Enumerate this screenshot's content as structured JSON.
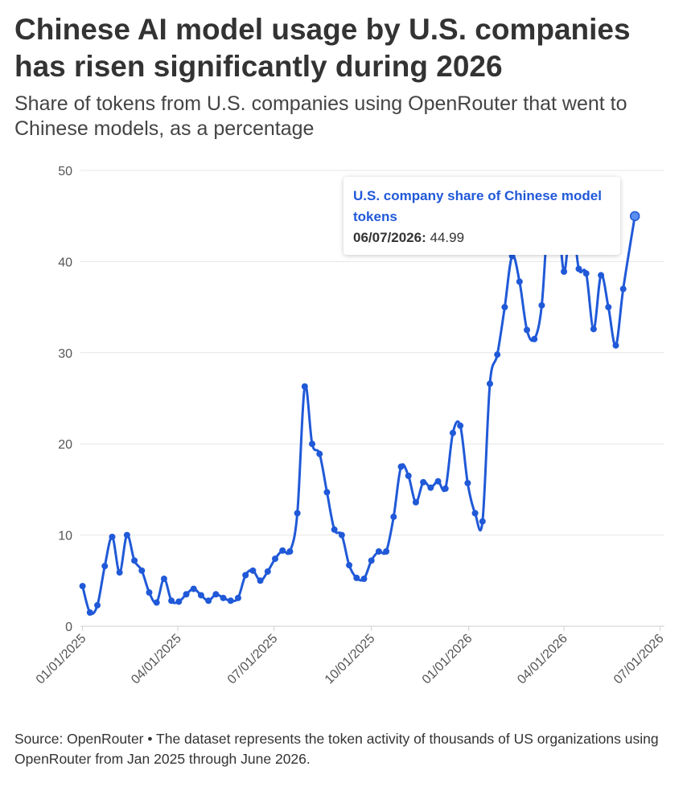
{
  "title": "Chinese AI model usage by U.S. companies has risen significantly during 2026",
  "subtitle": "Share of tokens from U.S. companies using OpenRouter that went to Chinese models, as a percentage",
  "source": "Source: OpenRouter • The dataset represents the token activity of thousands of US organizations using OpenRouter from Jan 2025 through June 2026.",
  "tooltip": {
    "series": "U.S. company share of Chinese model tokens",
    "date": "06/07/2026:",
    "value": "44.99"
  },
  "colors": {
    "line": "#2059d8",
    "highlight": "#5b8ff0"
  },
  "chart_data": {
    "type": "line",
    "title": "Chinese AI model usage by U.S. companies has risen significantly during 2026",
    "xlabel": "",
    "ylabel": "",
    "ylim": [
      0,
      50
    ],
    "yticks": [
      0,
      10,
      20,
      30,
      40,
      50
    ],
    "xlim": [
      "2024-12-30",
      "2026-07-05"
    ],
    "xticks": [
      "01/01/2025",
      "04/01/2025",
      "07/01/2025",
      "10/01/2025",
      "01/01/2026",
      "04/01/2026",
      "07/01/2026"
    ],
    "grid": true,
    "legend": "none",
    "series": [
      {
        "name": "U.S. company share of Chinese model tokens",
        "points": [
          [
            "2025-01-01",
            4.4
          ],
          [
            "2025-01-08",
            1.5
          ],
          [
            "2025-01-15",
            2.3
          ],
          [
            "2025-01-22",
            6.6
          ],
          [
            "2025-01-29",
            9.8
          ],
          [
            "2025-02-05",
            5.9
          ],
          [
            "2025-02-12",
            10.0
          ],
          [
            "2025-02-19",
            7.2
          ],
          [
            "2025-02-26",
            6.1
          ],
          [
            "2025-03-05",
            3.7
          ],
          [
            "2025-03-12",
            2.6
          ],
          [
            "2025-03-19",
            5.2
          ],
          [
            "2025-03-26",
            2.8
          ],
          [
            "2025-04-02",
            2.7
          ],
          [
            "2025-04-09",
            3.5
          ],
          [
            "2025-04-16",
            4.1
          ],
          [
            "2025-04-23",
            3.4
          ],
          [
            "2025-04-30",
            2.8
          ],
          [
            "2025-05-07",
            3.5
          ],
          [
            "2025-05-14",
            3.1
          ],
          [
            "2025-05-21",
            2.8
          ],
          [
            "2025-05-28",
            3.1
          ],
          [
            "2025-06-04",
            5.6
          ],
          [
            "2025-06-11",
            6.1
          ],
          [
            "2025-06-18",
            5.0
          ],
          [
            "2025-06-25",
            6.0
          ],
          [
            "2025-07-02",
            7.4
          ],
          [
            "2025-07-09",
            8.3
          ],
          [
            "2025-07-16",
            8.2
          ],
          [
            "2025-07-23",
            12.4
          ],
          [
            "2025-07-30",
            26.3
          ],
          [
            "2025-08-06",
            20.0
          ],
          [
            "2025-08-13",
            18.9
          ],
          [
            "2025-08-20",
            14.7
          ],
          [
            "2025-08-27",
            10.6
          ],
          [
            "2025-09-03",
            10.0
          ],
          [
            "2025-09-10",
            6.7
          ],
          [
            "2025-09-17",
            5.3
          ],
          [
            "2025-09-24",
            5.2
          ],
          [
            "2025-10-01",
            7.2
          ],
          [
            "2025-10-08",
            8.2
          ],
          [
            "2025-10-15",
            8.2
          ],
          [
            "2025-10-22",
            12.0
          ],
          [
            "2025-10-29",
            17.5
          ],
          [
            "2025-11-05",
            16.5
          ],
          [
            "2025-11-12",
            13.6
          ],
          [
            "2025-11-19",
            15.8
          ],
          [
            "2025-11-26",
            15.2
          ],
          [
            "2025-12-03",
            15.9
          ],
          [
            "2025-12-10",
            15.1
          ],
          [
            "2025-12-17",
            21.2
          ],
          [
            "2025-12-24",
            22.0
          ],
          [
            "2025-12-31",
            15.7
          ],
          [
            "2026-01-07",
            12.4
          ],
          [
            "2026-01-14",
            11.5
          ],
          [
            "2026-01-21",
            26.6
          ],
          [
            "2026-01-28",
            29.8
          ],
          [
            "2026-02-04",
            35.0
          ],
          [
            "2026-02-11",
            40.6
          ],
          [
            "2026-02-18",
            37.8
          ],
          [
            "2026-02-25",
            32.5
          ],
          [
            "2026-03-04",
            31.5
          ],
          [
            "2026-03-11",
            35.2
          ],
          [
            "2026-03-18",
            46.5
          ],
          [
            "2026-03-25",
            47.0
          ],
          [
            "2026-04-01",
            38.9
          ],
          [
            "2026-04-08",
            45.0
          ],
          [
            "2026-04-15",
            39.2
          ],
          [
            "2026-04-22",
            38.7
          ],
          [
            "2026-04-29",
            32.6
          ],
          [
            "2026-05-06",
            38.5
          ],
          [
            "2026-05-13",
            35.0
          ],
          [
            "2026-05-20",
            30.8
          ],
          [
            "2026-05-27",
            37.0
          ],
          [
            "2026-06-07",
            44.99
          ]
        ]
      }
    ]
  }
}
